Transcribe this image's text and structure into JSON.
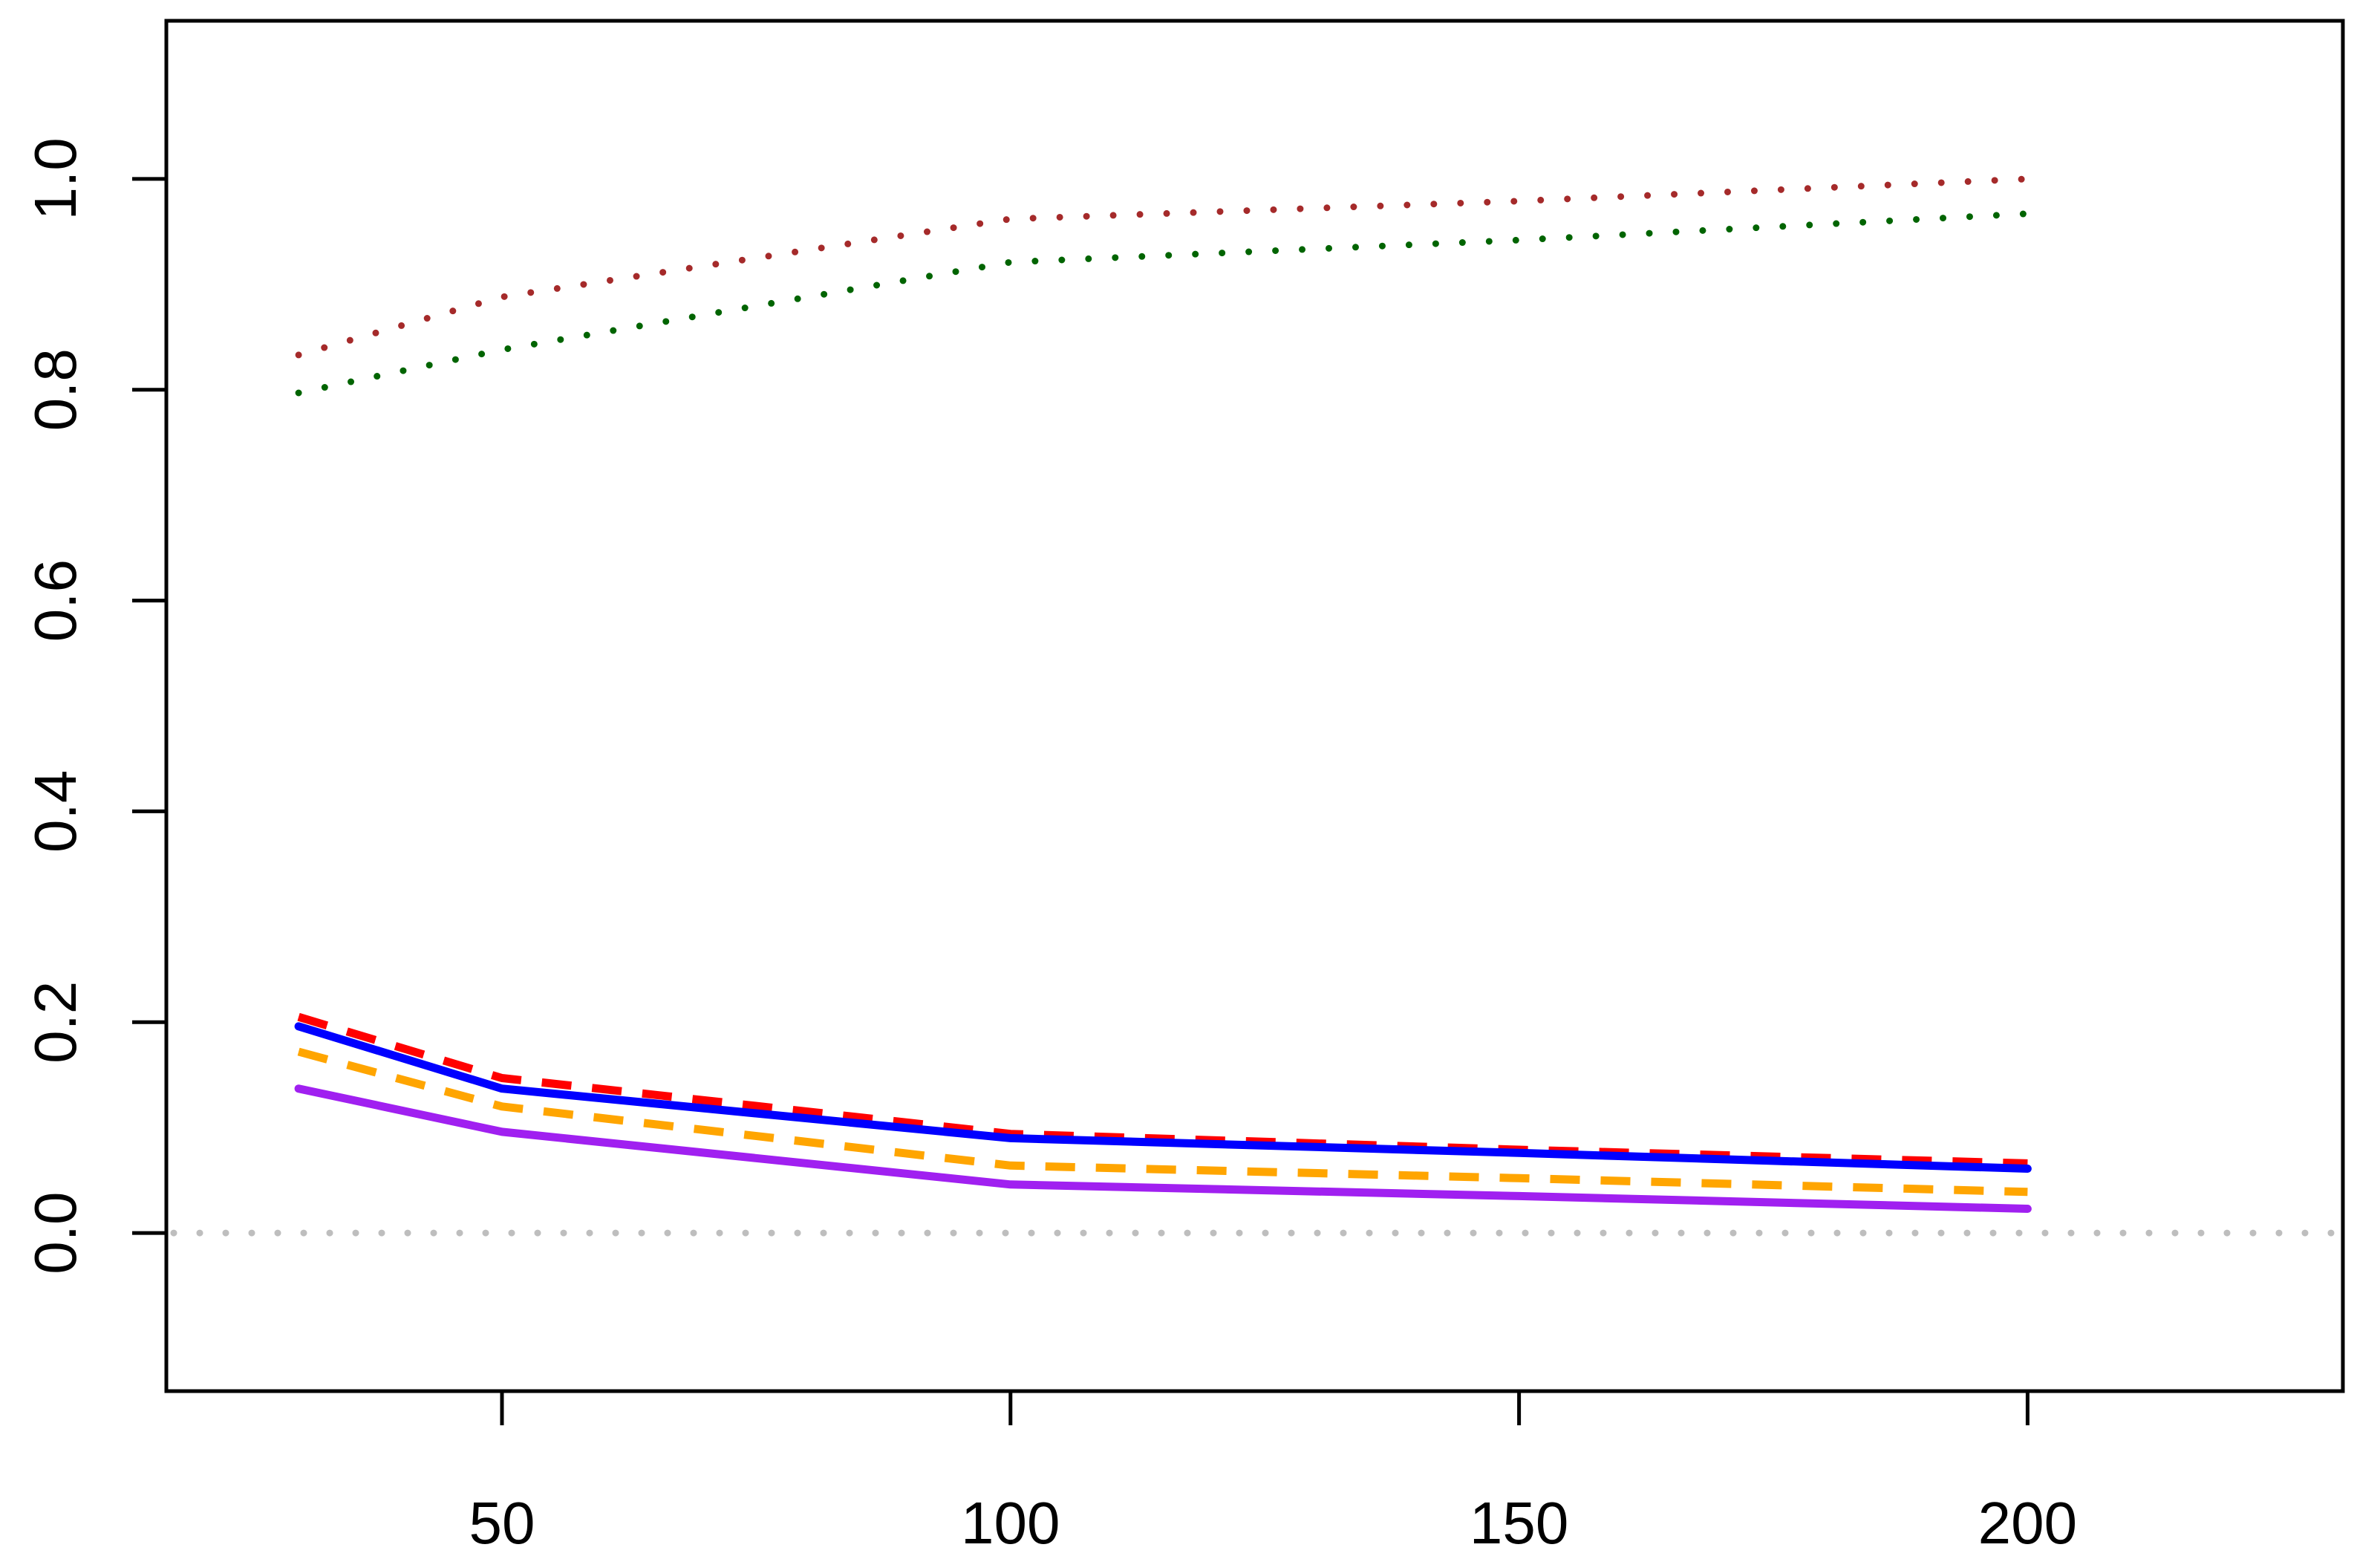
{
  "chart_data": {
    "type": "line",
    "title": "",
    "xlabel": "",
    "ylabel": "",
    "xlim": [
      17,
      231
    ],
    "ylim": [
      -0.15,
      1.15
    ],
    "xticks": [
      50,
      100,
      150,
      200
    ],
    "xtick_labels": [
      "50",
      "100",
      "150",
      "200"
    ],
    "yticks": [
      0.0,
      0.2,
      0.4,
      0.6,
      0.8,
      1.0
    ],
    "ytick_labels": [
      "0.0",
      "0.2",
      "0.4",
      "0.6",
      "0.8",
      "1.0"
    ],
    "grid": false,
    "legend": "none",
    "reference_line": {
      "y": 0.0,
      "color": "#bebebe",
      "style": "dotted"
    },
    "x": [
      30,
      50,
      100,
      150,
      200
    ],
    "series": [
      {
        "color": "#a52a2a",
        "style": "dotted",
        "values": [
          0.833,
          0.888,
          0.962,
          0.979,
          1.0
        ]
      },
      {
        "color": "#006400",
        "style": "dotted",
        "values": [
          0.797,
          0.838,
          0.921,
          0.942,
          0.967
        ]
      },
      {
        "color": "#ff0000",
        "style": "dashed",
        "values": [
          0.205,
          0.147,
          0.094,
          0.079,
          0.066
        ]
      },
      {
        "color": "#0000ff",
        "style": "solid",
        "values": [
          0.196,
          0.137,
          0.09,
          0.076,
          0.061
        ]
      },
      {
        "color": "#ffa500",
        "style": "dashed",
        "values": [
          0.172,
          0.12,
          0.064,
          0.052,
          0.039
        ]
      },
      {
        "color": "#a020f0",
        "style": "solid",
        "values": [
          0.137,
          0.096,
          0.046,
          0.035,
          0.023
        ]
      }
    ]
  }
}
